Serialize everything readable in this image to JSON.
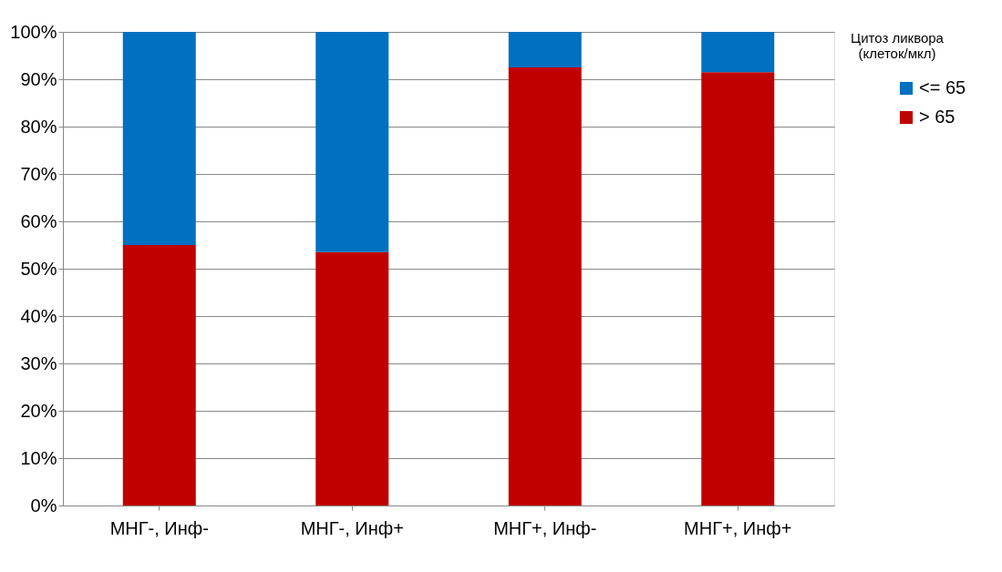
{
  "chart_data": {
    "type": "bar",
    "stacked": true,
    "categories": [
      "МНГ-, Инф-",
      "МНГ-, Инф+",
      "МНГ+, Инф-",
      "МНГ+, Инф+"
    ],
    "series": [
      {
        "name": "> 65",
        "color": "#c00000",
        "values": [
          55,
          53.5,
          92.5,
          91.5
        ]
      },
      {
        "name": "<= 65",
        "color": "#0070c0",
        "values": [
          45,
          46.5,
          7.5,
          8.5
        ]
      }
    ],
    "legend_title": "Цитоз ликвора (клеток/мкл)",
    "legend": "right",
    "grid": "y",
    "ylim": [
      0,
      100
    ],
    "yticks": [
      {
        "value": 0,
        "label": "0%"
      },
      {
        "value": 10,
        "label": "10%"
      },
      {
        "value": 20,
        "label": "20%"
      },
      {
        "value": 30,
        "label": "30%"
      },
      {
        "value": 40,
        "label": "40%"
      },
      {
        "value": 50,
        "label": "50%"
      },
      {
        "value": 60,
        "label": "60%"
      },
      {
        "value": 70,
        "label": "70%"
      },
      {
        "value": 80,
        "label": "80%"
      },
      {
        "value": 90,
        "label": "90%"
      },
      {
        "value": 100,
        "label": "100%"
      }
    ]
  }
}
